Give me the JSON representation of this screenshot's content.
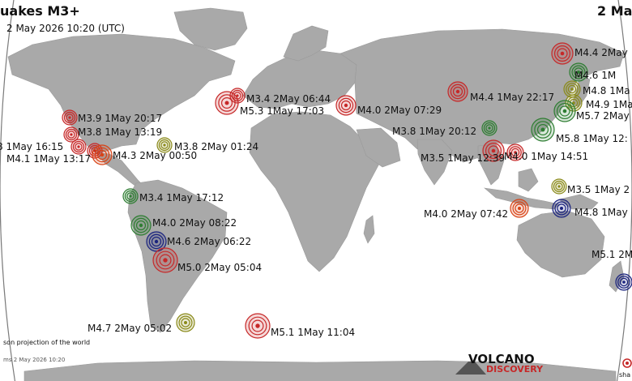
{
  "header": {
    "title": "uakes M3+",
    "date_line": "2 May 2026 10:20 (UTC)",
    "right_title": "2 Ma"
  },
  "footer": {
    "projection_note": "son projection of the world",
    "timestamp_note": "ms  2 May 2026 10:20",
    "brand_line1": "VOLCANO",
    "brand_line2": "DISCOVERY",
    "corner_text": "sha"
  },
  "colors": {
    "ocean": "#ffffff",
    "land": "#a9a9a9",
    "sphere": "#7a7a7a",
    "red": "#c62828",
    "green": "#2e7d32",
    "blue": "#1a237e",
    "olive": "#8a8a1a",
    "orange": "#d84315"
  },
  "quakes": [
    {
      "label": "M4.4  2May",
      "color": "red"
    },
    {
      "label": "M4.6  1M",
      "color": "green"
    },
    {
      "label": "M4.8  1Ma",
      "color": "olive"
    },
    {
      "label": "M4.9  1Ma",
      "color": "olive"
    },
    {
      "label": "M5.7  2May",
      "color": "green"
    },
    {
      "label": "M3.4  2May 06:44",
      "color": "red"
    },
    {
      "label": "M5.3  1May 17:03",
      "color": "red"
    },
    {
      "label": "M4.0  2May 07:29",
      "color": "red"
    },
    {
      "label": "M4.4  1May 22:17",
      "color": "red"
    },
    {
      "label": "M3.9  1May 20:17",
      "color": "red"
    },
    {
      "label": "M3.8  1May 13:19",
      "color": "red"
    },
    {
      "label": "8  1May 16:15",
      "color": "red"
    },
    {
      "label": "M4.1  1May 13:17",
      "color": "red"
    },
    {
      "label": "M4.3  2May 00:50",
      "color": "orange"
    },
    {
      "label": "M3.8  2May 01:24",
      "color": "olive"
    },
    {
      "label": "M3.8  1May 20:12",
      "color": "green"
    },
    {
      "label": "M5.8  1May 12:",
      "color": "green"
    },
    {
      "label": "M3.5  1May 12:39",
      "color": "red"
    },
    {
      "label": "M4.0  1May 14:51",
      "color": "red"
    },
    {
      "label": "M3.4  1May 17:12",
      "color": "green"
    },
    {
      "label": "M3.5  1May 2",
      "color": "olive"
    },
    {
      "label": "M4.0  2May 08:22",
      "color": "green"
    },
    {
      "label": "M4.0  2May 07:42",
      "color": "orange"
    },
    {
      "label": "M4.8  1May",
      "color": "blue"
    },
    {
      "label": "M4.6  2May 06:22",
      "color": "blue"
    },
    {
      "label": "M5.0  2May 05:04",
      "color": "red"
    },
    {
      "label": "M5.1  2M",
      "color": "blue"
    },
    {
      "label": "M4.7  2May 05:02",
      "color": "olive"
    },
    {
      "label": "M5.1  1May 11:04",
      "color": "red"
    }
  ]
}
